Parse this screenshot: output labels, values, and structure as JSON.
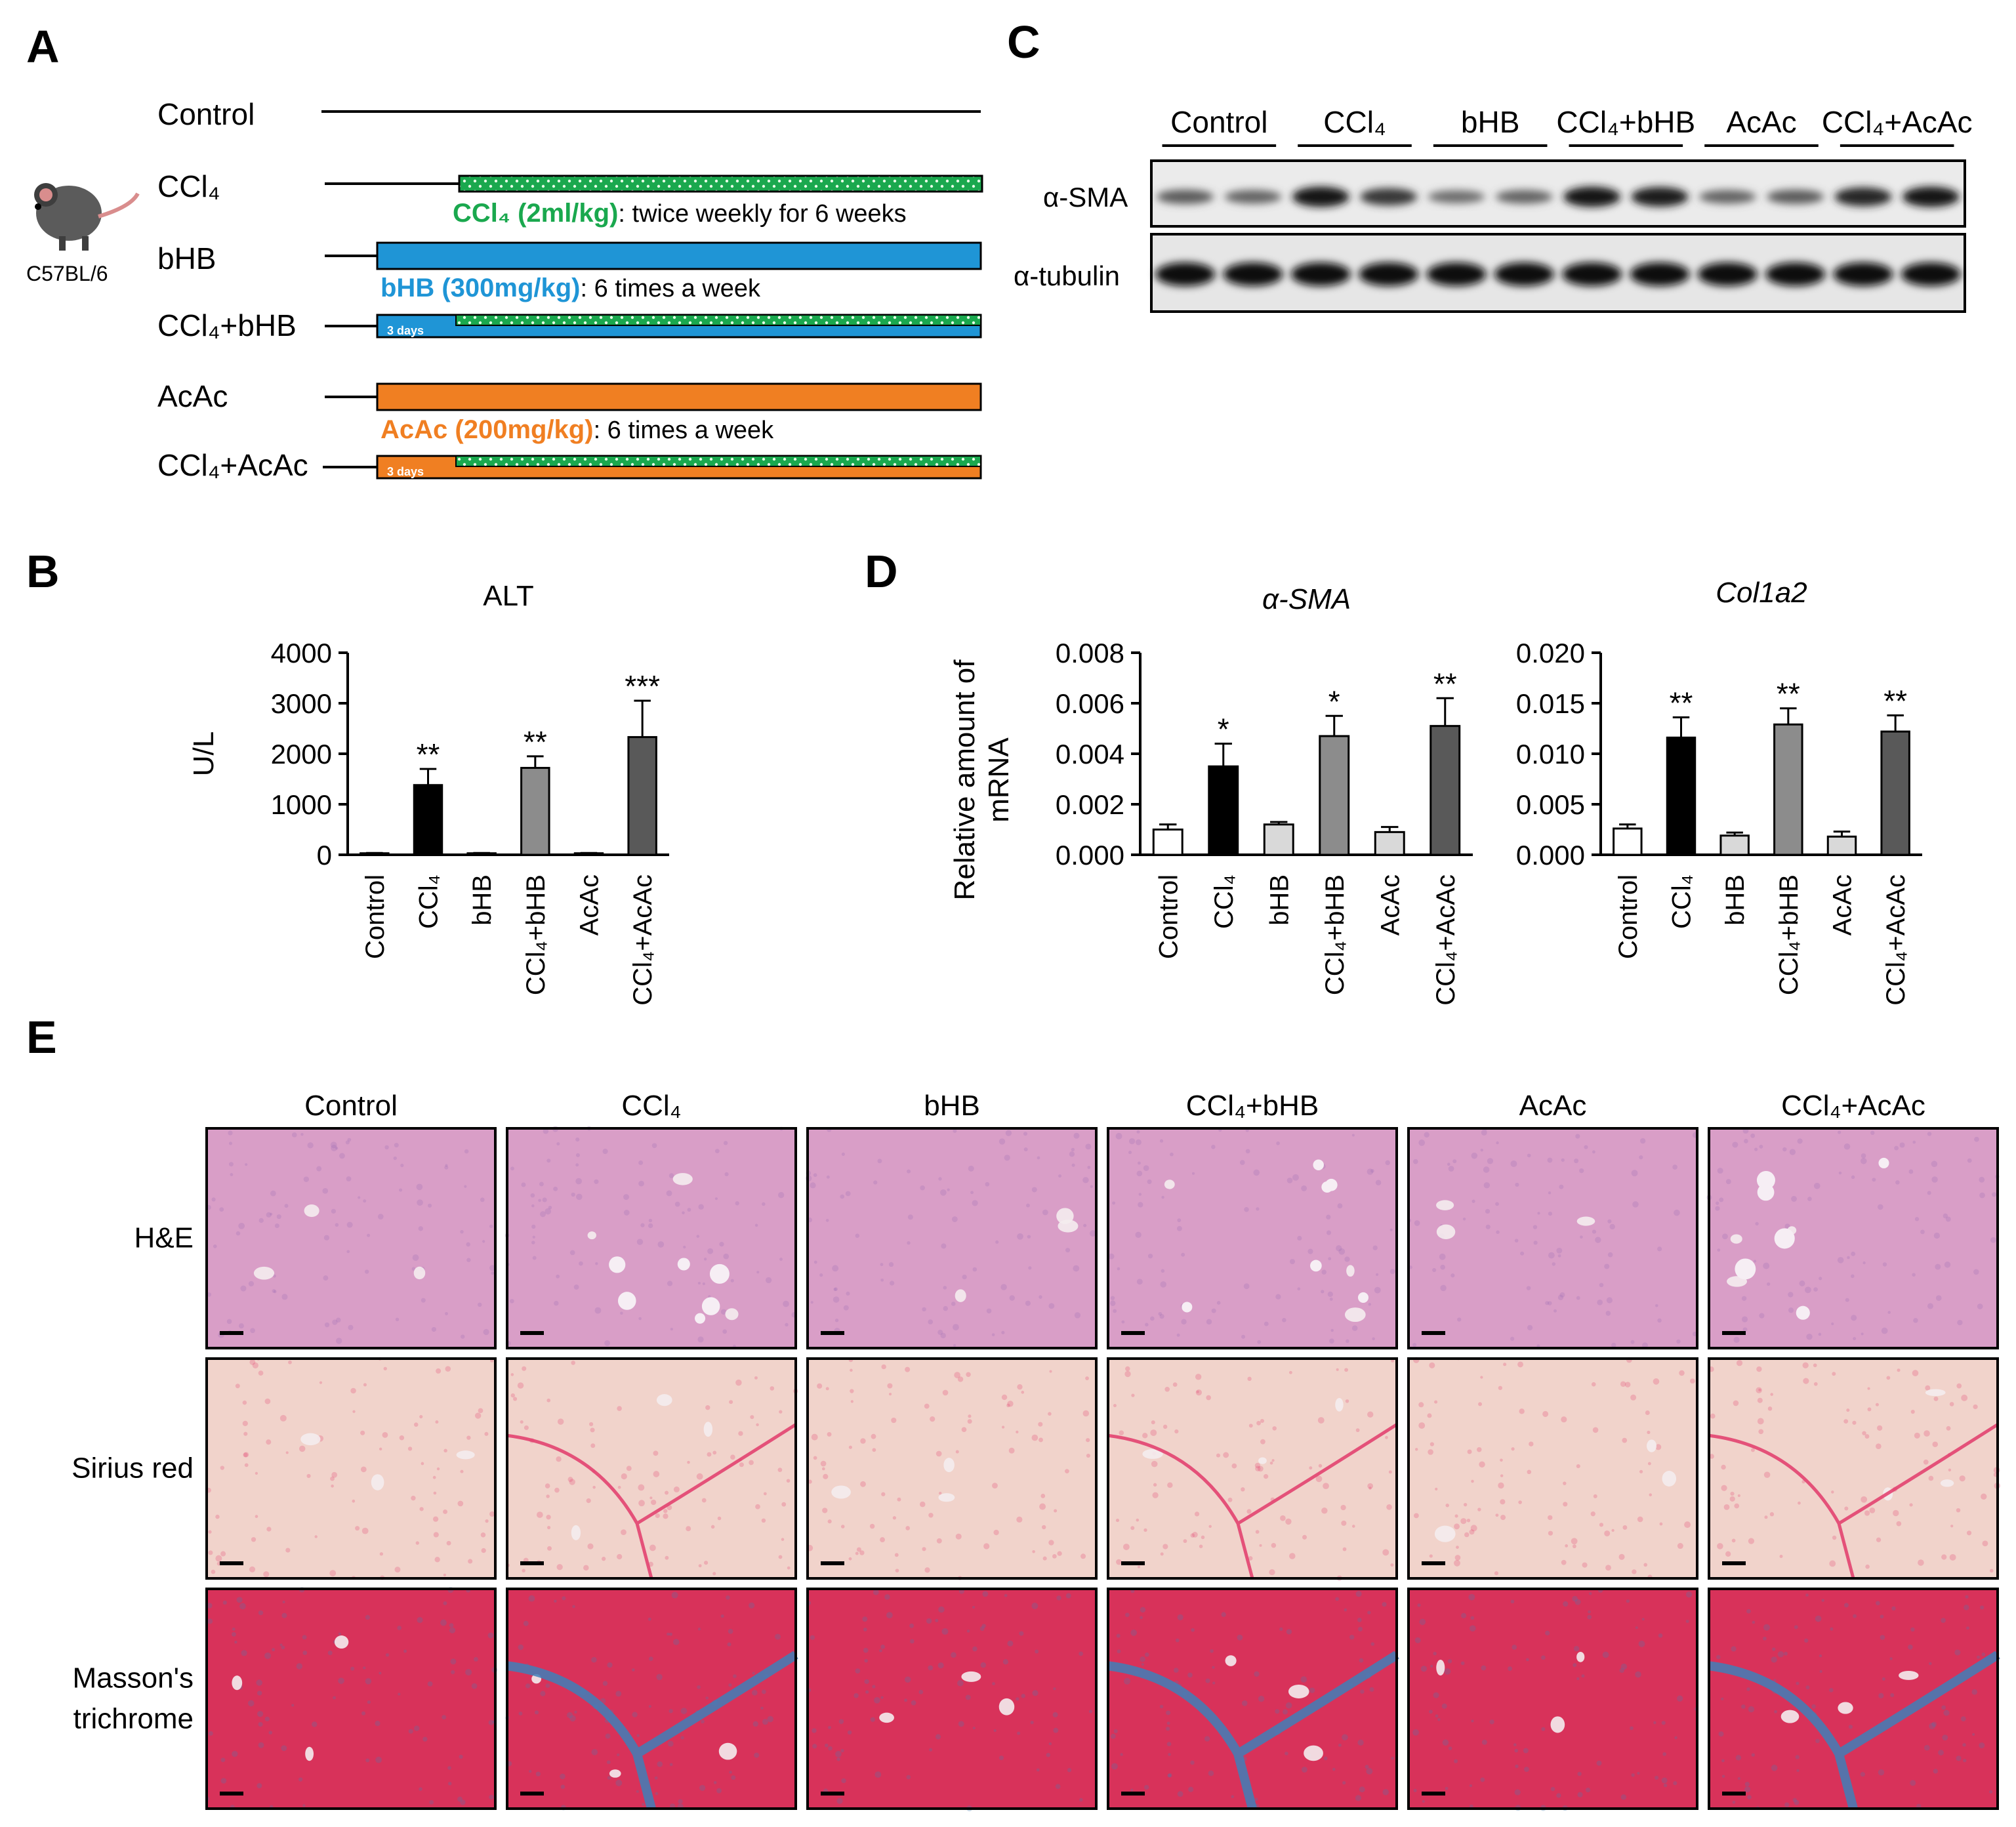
{
  "panels": {
    "a": "A",
    "b": "B",
    "c": "C",
    "d": "D",
    "e": "E"
  },
  "colors": {
    "ccl4_green": "#1aa84e",
    "bhb_blue": "#1f95d6",
    "acac_orange": "#f07f22",
    "dots_green": "#10741f"
  },
  "panel_a": {
    "mouse_strain": "C57BL/6",
    "mouse_icon": "mouse-icon",
    "groups": [
      "Control",
      "CCl₄",
      "bHB",
      "CCl₄+bHB",
      "AcAc",
      "CCl₄+AcAc"
    ],
    "ccl4_note_bold": "CCl₄ (2ml/kg)",
    "ccl4_note_rest": ": twice weekly for 6 weeks",
    "bhb_note_bold": "bHB (300mg/kg)",
    "bhb_note_rest": ": 6 times a week",
    "acac_note_bold": "AcAc (200mg/kg)",
    "acac_note_rest": ": 6 times a week",
    "pre_label": "3 days"
  },
  "panel_c": {
    "groups": [
      "Control",
      "CCl₄",
      "bHB",
      "CCl₄+bHB",
      "AcAc",
      "CCl₄+AcAc"
    ],
    "row_labels": [
      "α-SMA",
      "α-tubulin"
    ],
    "sma_band_intensity": [
      0.55,
      0.5,
      0.95,
      0.75,
      0.45,
      0.5,
      0.95,
      0.9,
      0.5,
      0.55,
      0.85,
      0.95
    ],
    "tubulin_band_intensity": [
      0.95,
      0.92,
      0.9,
      0.92,
      0.88,
      0.9,
      0.92,
      0.92,
      0.9,
      0.92,
      0.95,
      0.95
    ]
  },
  "chart_data": [
    {
      "type": "bar",
      "panel": "B",
      "title": "ALT",
      "ylabel": "U/L",
      "xlabel": "",
      "categories": [
        "Control",
        "CCl₄",
        "bHB",
        "CCl₄+bHB",
        "AcAc",
        "CCl₄+AcAc"
      ],
      "values": [
        30,
        1380,
        30,
        1720,
        30,
        2330
      ],
      "errors": [
        5,
        320,
        5,
        230,
        5,
        720
      ],
      "significance": [
        "",
        "**",
        "",
        "**",
        "",
        "***"
      ],
      "ylim": [
        0,
        4000
      ],
      "yticks": [
        "0",
        "1000",
        "2000",
        "3000",
        "4000"
      ],
      "fills": [
        "#ffffff",
        "#000000",
        "#d9d9d9",
        "#8c8c8c",
        "#d9d9d9",
        "#595959"
      ],
      "grid": false
    },
    {
      "type": "bar",
      "panel": "D",
      "title": "α-SMA",
      "ylabel": "Relative amount of mRNA",
      "xlabel": "",
      "categories": [
        "Control",
        "CCl₄",
        "bHB",
        "CCl₄+bHB",
        "AcAc",
        "CCl₄+AcAc"
      ],
      "values": [
        0.001,
        0.0035,
        0.0012,
        0.0047,
        0.0009,
        0.0051
      ],
      "errors": [
        0.0002,
        0.0009,
        0.0001,
        0.0008,
        0.0002,
        0.0011
      ],
      "significance": [
        "",
        "*",
        "",
        "*",
        "",
        "**"
      ],
      "ylim": [
        0,
        0.008
      ],
      "yticks": [
        "0.000",
        "0.002",
        "0.004",
        "0.006",
        "0.008"
      ],
      "fills": [
        "#ffffff",
        "#000000",
        "#d9d9d9",
        "#8c8c8c",
        "#d9d9d9",
        "#595959"
      ],
      "grid": false
    },
    {
      "type": "bar",
      "panel": "D",
      "title": "Col1a2",
      "ylabel": "",
      "xlabel": "",
      "categories": [
        "Control",
        "CCl₄",
        "bHB",
        "CCl₄+bHB",
        "AcAc",
        "CCl₄+AcAc"
      ],
      "values": [
        0.0026,
        0.0116,
        0.0019,
        0.0129,
        0.0018,
        0.0122
      ],
      "errors": [
        0.0004,
        0.002,
        0.0003,
        0.0016,
        0.0005,
        0.0016
      ],
      "significance": [
        "",
        "**",
        "",
        "**",
        "",
        "**"
      ],
      "ylim": [
        0,
        0.02
      ],
      "yticks": [
        "0.000",
        "0.005",
        "0.010",
        "0.015",
        "0.020"
      ],
      "fills": [
        "#ffffff",
        "#000000",
        "#d9d9d9",
        "#8c8c8c",
        "#d9d9d9",
        "#595959"
      ],
      "grid": false
    }
  ],
  "panel_e": {
    "columns": [
      "Control",
      "CCl₄",
      "bHB",
      "CCl₄+bHB",
      "AcAc",
      "CCl₄+AcAc"
    ],
    "rows": [
      {
        "label_lines": [
          "H&E"
        ],
        "stain": "he",
        "base_color": "#d99ec7",
        "accent": "#9a6bb3"
      },
      {
        "label_lines": [
          "Sirius red"
        ],
        "stain": "sirius",
        "base_color": "#f1d3cb",
        "accent": "#e23a6b"
      },
      {
        "label_lines": [
          "Masson's",
          "trichrome"
        ],
        "stain": "masson",
        "base_color": "#d8325a",
        "accent": "#3f7fb8"
      }
    ],
    "fibrotic_columns": [
      false,
      true,
      false,
      true,
      false,
      true
    ]
  }
}
